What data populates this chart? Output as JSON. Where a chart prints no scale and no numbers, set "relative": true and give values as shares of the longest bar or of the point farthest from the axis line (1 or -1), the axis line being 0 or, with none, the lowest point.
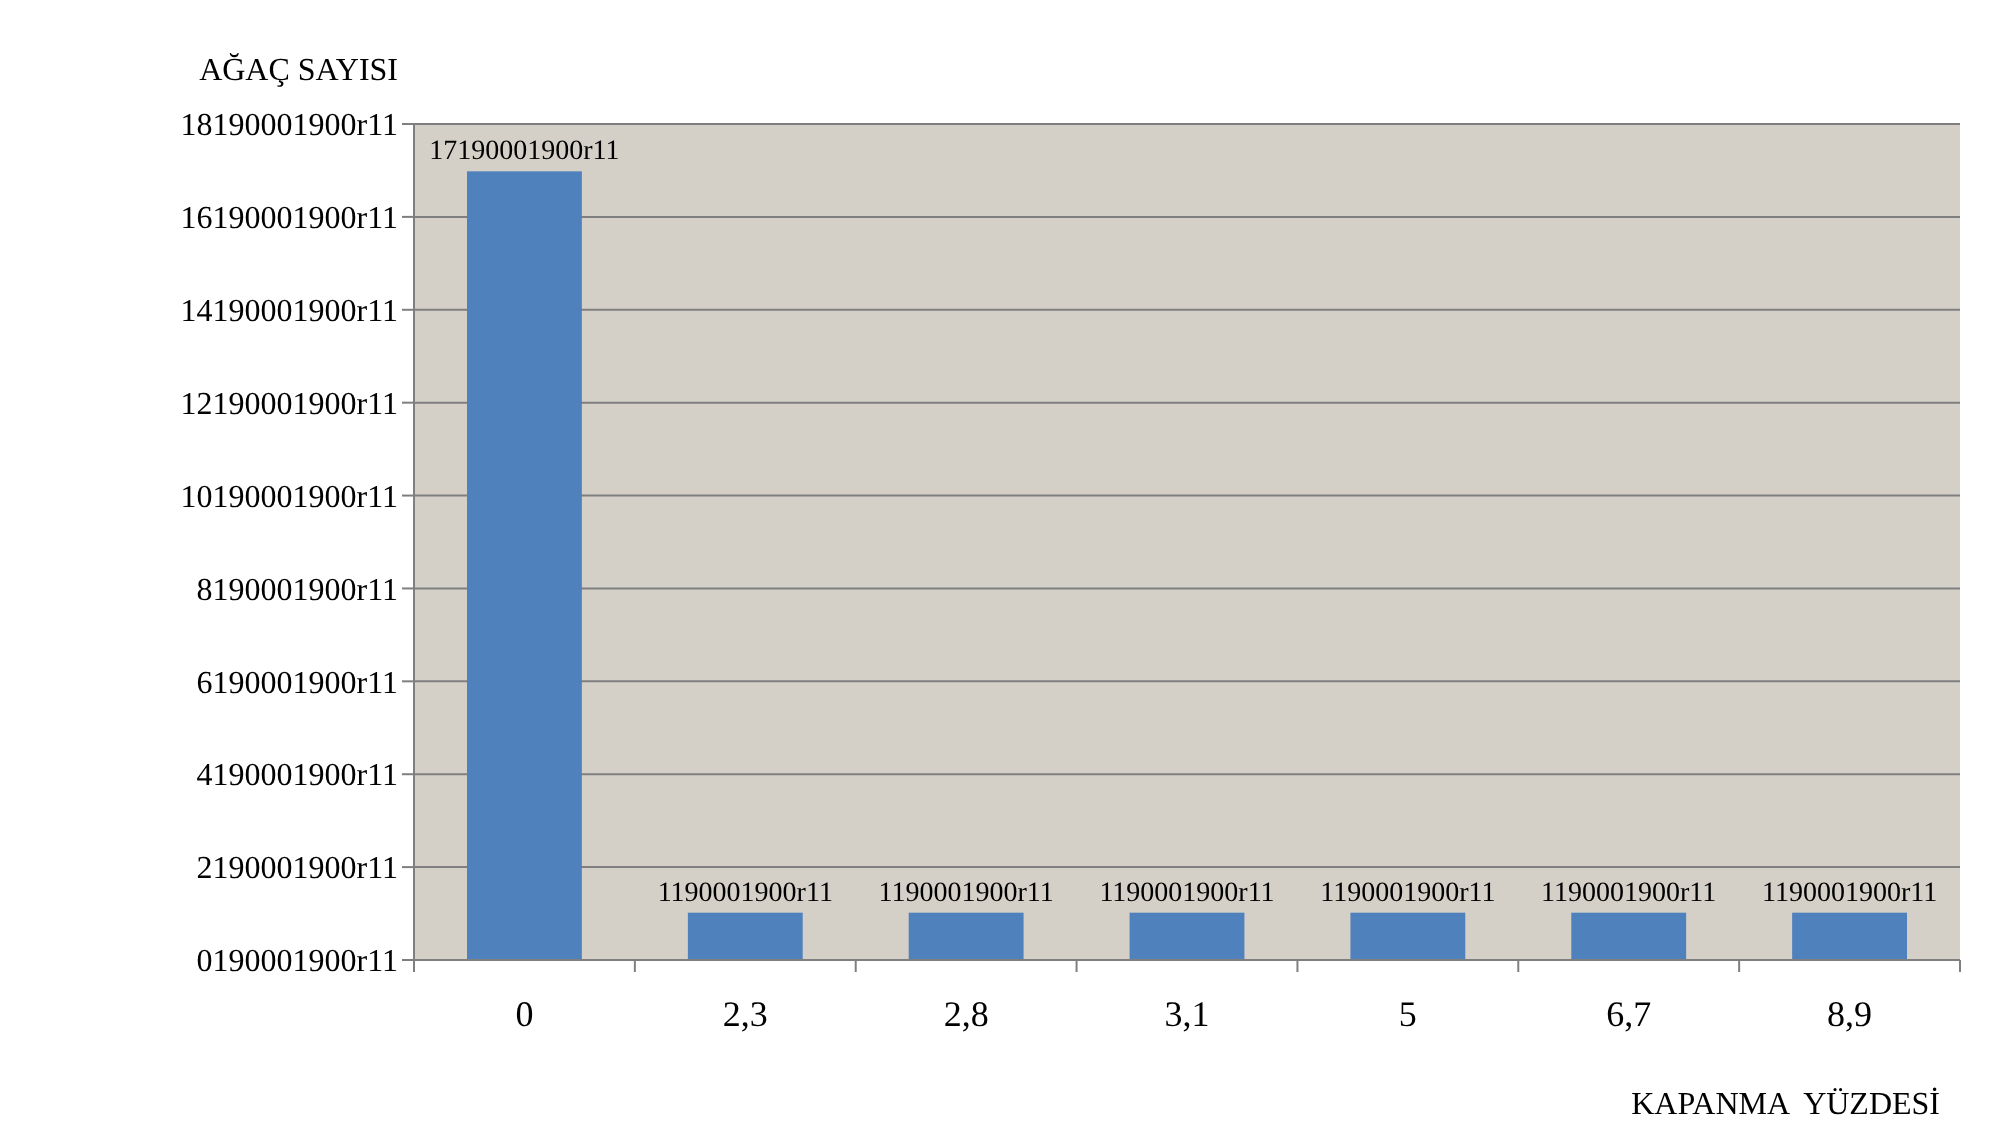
{
  "chart_data": {
    "type": "bar",
    "ylabel": "AĞAÇ SAYISI",
    "xlabel": "KAPANMA  YÜZDESİ",
    "categories": [
      "0",
      "2,3",
      "2,8",
      "3,1",
      "5",
      "6,7",
      "8,9"
    ],
    "values": [
      1,
      0.06,
      0.06,
      0.06,
      0.06,
      0.06,
      0.06
    ],
    "relative": true,
    "color": "#4f81bd",
    "annotations": [
      "0190001900r11",
      "2190001900r11",
      "4190001900r11",
      "6190001900r11",
      "8190001900r11",
      "10190001900r11",
      "12190001900r11",
      "14190001900r11",
      "16190001900r11",
      "18190001900r11",
      {
        "text": "17190001900r11",
        "x": "0",
        "y": 1
      },
      {
        "text": "1190001900r11",
        "x": "2,3",
        "y": 0.06
      },
      {
        "text": "1190001900r11",
        "x": "2,8",
        "y": 0.06
      },
      {
        "text": "1190001900r11",
        "x": "3,1",
        "y": 0.06
      },
      {
        "text": "1190001900r11",
        "x": "5",
        "y": 0.06
      },
      {
        "text": "1190001900r11",
        "x": "6,7",
        "y": 0.06
      },
      {
        "text": "1190001900r11",
        "x": "8,9",
        "y": 0.06
      }
    ],
    "grid": "y"
  }
}
